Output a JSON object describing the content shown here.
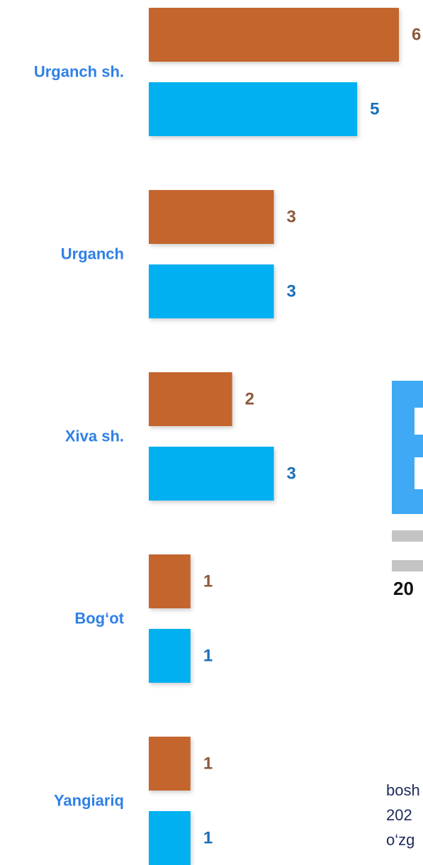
{
  "chart_data": {
    "type": "bar",
    "orientation": "horizontal",
    "categories": [
      "Urganch sh.",
      "Urganch",
      "Xiva sh.",
      "Bog‘ot",
      "Yangiariq"
    ],
    "series": [
      {
        "color": "#c4652f",
        "label_color": "#8b5a3c",
        "values": [
          6,
          3,
          2,
          1,
          1
        ]
      },
      {
        "color": "#00b0f0",
        "label_color": "#1a6fb8",
        "values": [
          5,
          3,
          3,
          1,
          1
        ]
      }
    ],
    "xlim": [
      0,
      6
    ]
  },
  "side_texts": [
    "20",
    "bosh",
    "202",
    "o‘zg"
  ]
}
